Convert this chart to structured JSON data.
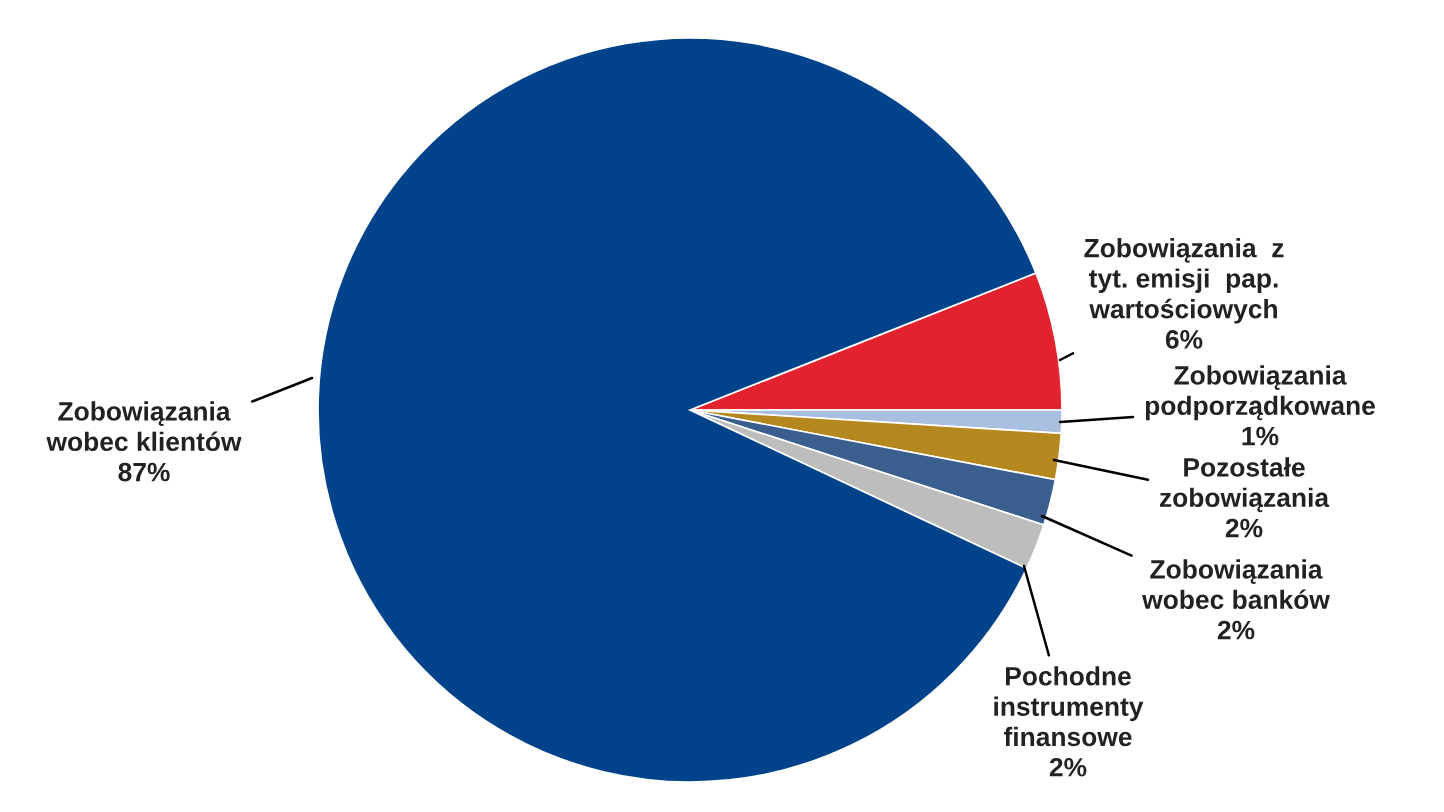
{
  "chart_data": {
    "type": "pie",
    "categories": [
      "Zobowiązania  z\ntyt. emisji  pap.\nwartościowych",
      "Zobowiązania\npodporządkowane",
      "Pozostałe\nzobowiązania",
      "Zobowiązania\nwobec banków",
      "Pochodne\ninstrumenty\nfinansowe",
      "Zobowiązania\nwobec klientów"
    ],
    "values": [
      6,
      1,
      2,
      2,
      2,
      87
    ],
    "value_labels": [
      "6%",
      "1%",
      "2%",
      "2%",
      "2%",
      "87%"
    ],
    "colors": [
      "#e3222f",
      "#a9bfe0",
      "#b5881f",
      "#3a5f8e",
      "#bdbdbd",
      "#00438a"
    ],
    "legend": false
  }
}
